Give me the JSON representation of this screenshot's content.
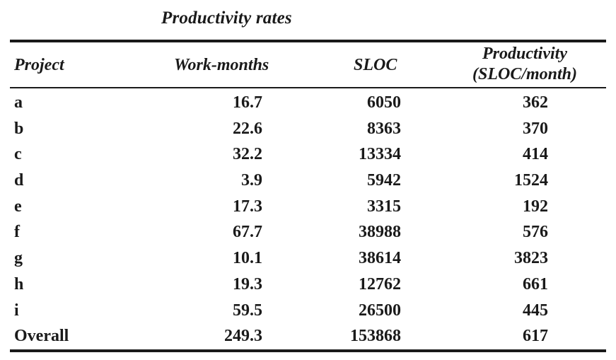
{
  "table": {
    "caption": "Productivity rates",
    "headers": {
      "project": "Project",
      "work_months": "Work-months",
      "sloc": "SLOC",
      "productivity_line1": "Productivity",
      "productivity_line2": "(SLOC/month)"
    },
    "rows": [
      {
        "project": "a",
        "work_months": "16.7",
        "sloc": "6050",
        "productivity": "362"
      },
      {
        "project": "b",
        "work_months": "22.6",
        "sloc": "8363",
        "productivity": "370"
      },
      {
        "project": "c",
        "work_months": "32.2",
        "sloc": "13334",
        "productivity": "414"
      },
      {
        "project": "d",
        "work_months": "3.9",
        "sloc": "5942",
        "productivity": "1524"
      },
      {
        "project": "e",
        "work_months": "17.3",
        "sloc": "3315",
        "productivity": "192"
      },
      {
        "project": "f",
        "work_months": "67.7",
        "sloc": "38988",
        "productivity": "576"
      },
      {
        "project": "g",
        "work_months": "10.1",
        "sloc": "38614",
        "productivity": "3823"
      },
      {
        "project": "h",
        "work_months": "19.3",
        "sloc": "12762",
        "productivity": "661"
      },
      {
        "project": "i",
        "work_months": "59.5",
        "sloc": "26500",
        "productivity": "445"
      },
      {
        "project": "Overall",
        "work_months": "249.3",
        "sloc": "153868",
        "productivity": "617"
      }
    ]
  }
}
